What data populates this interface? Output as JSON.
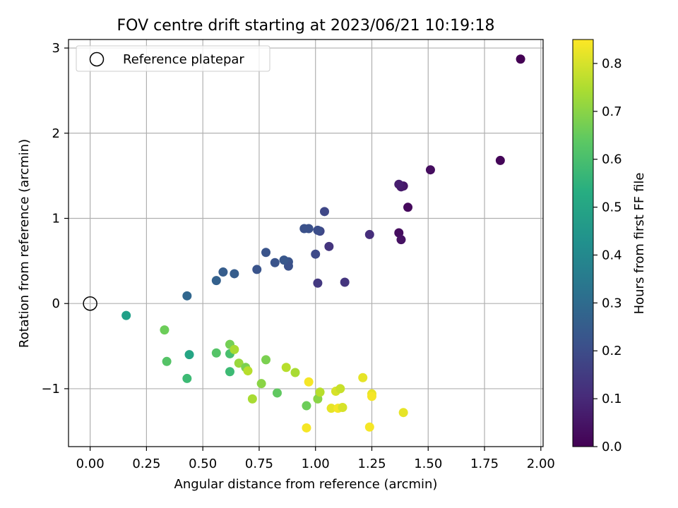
{
  "chart_data": {
    "type": "scatter",
    "title": "FOV centre drift starting at 2023/06/21 10:19:18",
    "xlabel": "Angular distance from reference (arcmin)",
    "ylabel": "Rotation from reference (arcmin)",
    "xlim": [
      -0.096,
      2.01
    ],
    "ylim": [
      -1.68,
      3.1
    ],
    "xticks": [
      0.0,
      0.25,
      0.5,
      0.75,
      1.0,
      1.25,
      1.5,
      1.75,
      2.0
    ],
    "xtick_labels": [
      "0.00",
      "0.25",
      "0.50",
      "0.75",
      "1.00",
      "1.25",
      "1.50",
      "1.75",
      "2.00"
    ],
    "yticks": [
      -1,
      0,
      1,
      2,
      3
    ],
    "ytick_labels": [
      "−1",
      "0",
      "1",
      "2",
      "3"
    ],
    "grid": true,
    "legend": {
      "position": "top-left",
      "entries": [
        {
          "label": "Reference platepar",
          "marker": "open-circle"
        }
      ]
    },
    "reference_point": {
      "x": 0.0,
      "y": 0.0
    },
    "colorbar": {
      "label": "Hours from first FF file",
      "colormap": "viridis",
      "range": [
        0.0,
        0.85
      ],
      "ticks": [
        0.0,
        0.1,
        0.2,
        0.3,
        0.4,
        0.5,
        0.6,
        0.7,
        0.8
      ],
      "tick_labels": [
        "0.0",
        "0.1",
        "0.2",
        "0.3",
        "0.4",
        "0.5",
        "0.6",
        "0.7",
        "0.8"
      ]
    },
    "points": [
      {
        "x": 1.91,
        "y": 2.87,
        "c": 0.0
      },
      {
        "x": 1.82,
        "y": 1.68,
        "c": 0.01
      },
      {
        "x": 1.51,
        "y": 1.57,
        "c": 0.03
      },
      {
        "x": 1.41,
        "y": 1.13,
        "c": 0.02
      },
      {
        "x": 1.39,
        "y": 1.38,
        "c": 0.05
      },
      {
        "x": 1.38,
        "y": 1.37,
        "c": 0.06
      },
      {
        "x": 1.37,
        "y": 1.4,
        "c": 0.07
      },
      {
        "x": 1.37,
        "y": 0.83,
        "c": 0.03
      },
      {
        "x": 1.38,
        "y": 0.75,
        "c": 0.04
      },
      {
        "x": 1.24,
        "y": 0.81,
        "c": 0.11
      },
      {
        "x": 1.13,
        "y": 0.25,
        "c": 0.13
      },
      {
        "x": 1.06,
        "y": 0.67,
        "c": 0.13
      },
      {
        "x": 1.04,
        "y": 1.08,
        "c": 0.18
      },
      {
        "x": 1.02,
        "y": 0.85,
        "c": 0.18
      },
      {
        "x": 1.01,
        "y": 0.86,
        "c": 0.2
      },
      {
        "x": 1.01,
        "y": 0.24,
        "c": 0.14
      },
      {
        "x": 1.0,
        "y": 0.58,
        "c": 0.19
      },
      {
        "x": 0.97,
        "y": 0.88,
        "c": 0.21
      },
      {
        "x": 0.95,
        "y": 0.88,
        "c": 0.21
      },
      {
        "x": 0.88,
        "y": 0.49,
        "c": 0.22
      },
      {
        "x": 0.88,
        "y": 0.44,
        "c": 0.21
      },
      {
        "x": 0.86,
        "y": 0.51,
        "c": 0.23
      },
      {
        "x": 0.82,
        "y": 0.48,
        "c": 0.22
      },
      {
        "x": 0.78,
        "y": 0.6,
        "c": 0.22
      },
      {
        "x": 0.74,
        "y": 0.4,
        "c": 0.22
      },
      {
        "x": 0.64,
        "y": 0.35,
        "c": 0.25
      },
      {
        "x": 0.59,
        "y": 0.37,
        "c": 0.25
      },
      {
        "x": 0.56,
        "y": 0.27,
        "c": 0.26
      },
      {
        "x": 0.43,
        "y": 0.09,
        "c": 0.28
      },
      {
        "x": 0.16,
        "y": -0.14,
        "c": 0.48
      },
      {
        "x": 0.33,
        "y": -0.31,
        "c": 0.66
      },
      {
        "x": 0.34,
        "y": -0.68,
        "c": 0.62
      },
      {
        "x": 0.44,
        "y": -0.6,
        "c": 0.5
      },
      {
        "x": 0.43,
        "y": -0.88,
        "c": 0.58
      },
      {
        "x": 0.56,
        "y": -0.58,
        "c": 0.62
      },
      {
        "x": 0.62,
        "y": -0.59,
        "c": 0.6
      },
      {
        "x": 0.62,
        "y": -0.48,
        "c": 0.67
      },
      {
        "x": 0.62,
        "y": -0.8,
        "c": 0.58
      },
      {
        "x": 0.64,
        "y": -0.54,
        "c": 0.74
      },
      {
        "x": 0.66,
        "y": -0.7,
        "c": 0.72
      },
      {
        "x": 0.69,
        "y": -0.75,
        "c": 0.68
      },
      {
        "x": 0.7,
        "y": -0.79,
        "c": 0.76
      },
      {
        "x": 0.72,
        "y": -1.12,
        "c": 0.74
      },
      {
        "x": 0.76,
        "y": -0.94,
        "c": 0.7
      },
      {
        "x": 0.78,
        "y": -0.66,
        "c": 0.68
      },
      {
        "x": 0.83,
        "y": -1.05,
        "c": 0.64
      },
      {
        "x": 0.87,
        "y": -0.75,
        "c": 0.76
      },
      {
        "x": 0.91,
        "y": -0.81,
        "c": 0.74
      },
      {
        "x": 0.96,
        "y": -1.2,
        "c": 0.66
      },
      {
        "x": 0.96,
        "y": -1.46,
        "c": 0.84
      },
      {
        "x": 0.97,
        "y": -0.92,
        "c": 0.84
      },
      {
        "x": 1.01,
        "y": -1.12,
        "c": 0.7
      },
      {
        "x": 1.02,
        "y": -1.04,
        "c": 0.76
      },
      {
        "x": 1.07,
        "y": -1.23,
        "c": 0.82
      },
      {
        "x": 1.09,
        "y": -1.03,
        "c": 0.8
      },
      {
        "x": 1.1,
        "y": -1.23,
        "c": 0.84
      },
      {
        "x": 1.11,
        "y": -1.0,
        "c": 0.78
      },
      {
        "x": 1.12,
        "y": -1.22,
        "c": 0.8
      },
      {
        "x": 1.21,
        "y": -0.87,
        "c": 0.82
      },
      {
        "x": 1.24,
        "y": -1.45,
        "c": 0.84
      },
      {
        "x": 1.25,
        "y": -1.06,
        "c": 0.82
      },
      {
        "x": 1.25,
        "y": -1.09,
        "c": 0.84
      },
      {
        "x": 1.39,
        "y": -1.28,
        "c": 0.82
      }
    ]
  }
}
